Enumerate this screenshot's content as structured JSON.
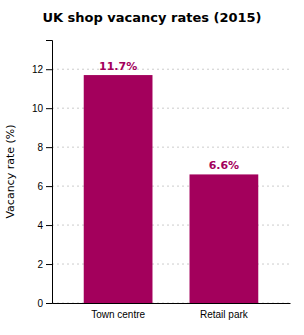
{
  "chart_data": {
    "type": "bar",
    "title": "UK shop vacancy rates (2015)",
    "categories": [
      "Town centre",
      "Retail park"
    ],
    "values": [
      11.7,
      6.6
    ],
    "value_labels": [
      "11.7%",
      "6.6%"
    ],
    "data_labels": true,
    "color": "#A3005C",
    "ylabel": "Vacancy rate (%)",
    "ylim": [
      0,
      13.5
    ],
    "yticks": [
      0,
      2,
      4,
      6,
      8,
      10,
      12
    ],
    "grid": true
  }
}
